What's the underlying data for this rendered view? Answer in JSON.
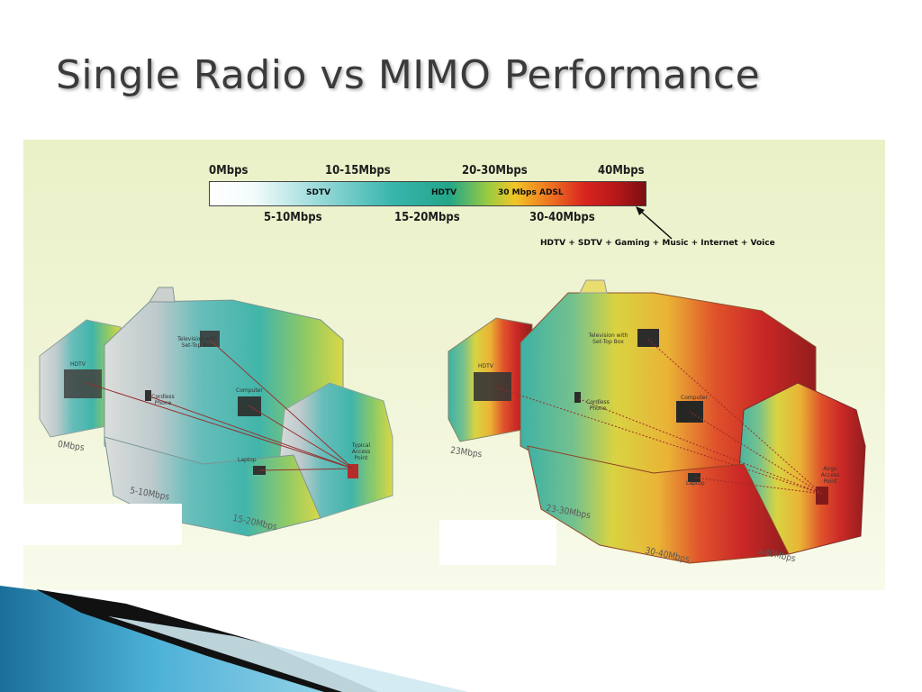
{
  "title": "Single Radio vs MIMO Performance",
  "scale": {
    "top_labels": [
      "0Mbps",
      "10-15Mbps",
      "20-30Mbps",
      "40Mbps"
    ],
    "bottom_labels": [
      "5-10Mbps",
      "15-20Mbps",
      "30-40Mbps"
    ],
    "bar_labels": [
      "SDTV",
      "HDTV",
      "30 Mbps ADSL"
    ],
    "annotation": "HDTV + SDTV + Gaming + Music + Internet + Voice",
    "colors": {
      "low": "#ffffff",
      "mid": "#22a689",
      "high": "#d92420",
      "max": "#7b0f12"
    }
  },
  "single_radio_house": {
    "zone_labels": [
      "0Mbps",
      "5-10Mbps",
      "15-20Mbps"
    ],
    "devices": [
      "HDTV",
      "Television with Set-Top Box",
      "Cordless Phone",
      "Computer",
      "Laptop",
      "Typical Access Point"
    ]
  },
  "mimo_house": {
    "zone_labels": [
      "23Mbps",
      "23-30Mbps",
      "30-40Mbps",
      ">40Mbps"
    ],
    "devices": [
      "HDTV",
      "Television with Set-Top Box",
      "Cordless Phone",
      "Computer",
      "Laptop",
      "Airgo Access Point"
    ]
  }
}
